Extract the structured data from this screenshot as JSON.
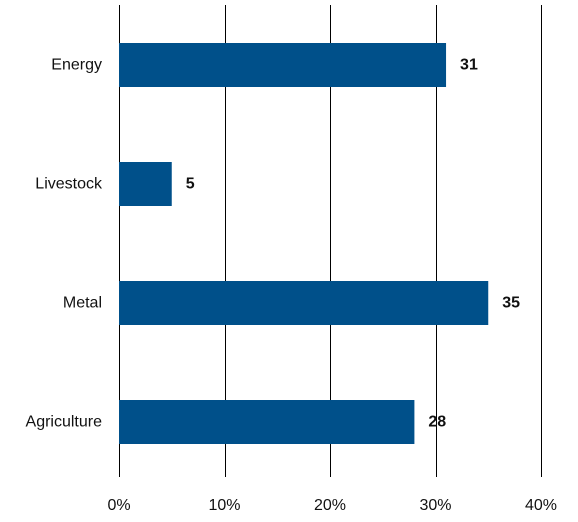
{
  "chart_data": {
    "type": "bar",
    "orientation": "horizontal",
    "title": "",
    "xlabel": "",
    "ylabel": "",
    "categories": [
      "Energy",
      "Livestock",
      "Metal",
      "Agriculture"
    ],
    "values": [
      31,
      5,
      35,
      28
    ],
    "data_labels": [
      "31",
      "5",
      "35",
      "28"
    ],
    "x_ticks": [
      0,
      10,
      20,
      30,
      40
    ],
    "x_tick_labels": [
      "0%",
      "10%",
      "20%",
      "30%",
      "40%"
    ],
    "xlim": [
      0,
      40
    ],
    "grid": "vertical",
    "legend": "none",
    "bar_color": "#00508a",
    "grid_color": "#000000"
  }
}
